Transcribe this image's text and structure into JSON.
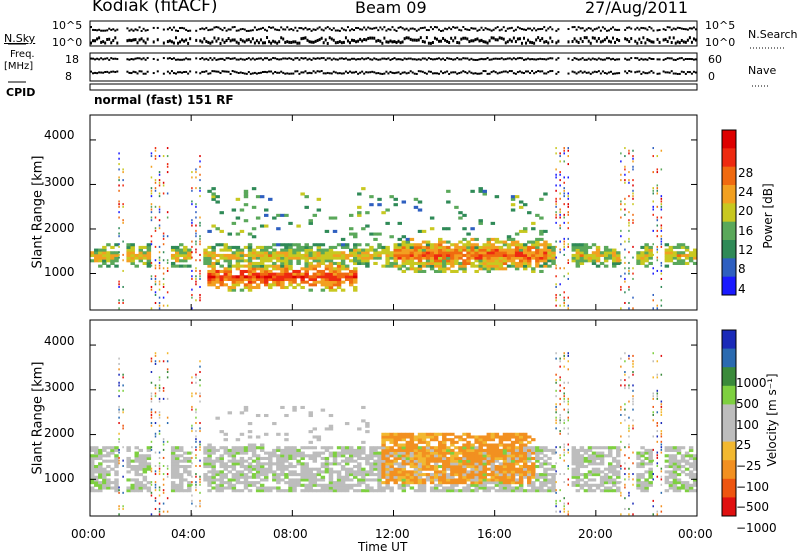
{
  "header": {
    "station": "Kodiak (fitACF)",
    "beam": "Beam 09",
    "date": "27/Aug/2011"
  },
  "status_panels": {
    "nsky_label": "N.Sky",
    "nsky_ticks": [
      "10^5",
      "10^0"
    ],
    "nsearch_label": "N.Search",
    "nsearch_ticks": [
      "10^5",
      "10^0"
    ],
    "freq_label_1": "Freq.",
    "freq_label_2": "[MHz]",
    "freq_ticks": [
      "18",
      "8"
    ],
    "nave_label": "Nave",
    "nave_ticks": [
      "60",
      "0"
    ],
    "cpid_label": "CPID",
    "cpid_text": "normal (fast) 151 RF"
  },
  "colors": {
    "power_scale": [
      "#1a1aff",
      "#2e5fc0",
      "#2f8a57",
      "#5aa85a",
      "#c8c820",
      "#f2a020",
      "#f06a10",
      "#ee2a10",
      "#dd0000"
    ],
    "velocity_scale": [
      "#e01010",
      "#ee5510",
      "#f29020",
      "#f2b830",
      "#bdbdbd",
      "#bdbdbd",
      "#7ed040",
      "#3a8a3a",
      "#2a6ab0",
      "#1a2ab8"
    ]
  },
  "chart_data": [
    {
      "type": "heatmap",
      "name": "power",
      "ylabel": "Slant Range [km]",
      "ylim": [
        180,
        4560
      ],
      "yticks": [
        "1000",
        "2000",
        "3000",
        "4000"
      ],
      "xlim": [
        0,
        24
      ],
      "colorbar": {
        "label": "Power [dB]",
        "range": [
          0,
          32
        ],
        "ticks": [
          "4",
          "8",
          "12",
          "16",
          "20",
          "24",
          "28"
        ]
      },
      "features": [
        {
          "feature": "f-layer band",
          "t0": 0.0,
          "t1": 24.0,
          "range_km": [
            1100,
            1650
          ],
          "level": 18
        },
        {
          "feature": "near-range echoes",
          "t0": 4.6,
          "t1": 10.5,
          "range_km": [
            550,
            1250
          ],
          "level": 26
        },
        {
          "feature": "dense band",
          "t0": 12.0,
          "t1": 18.0,
          "range_km": [
            1000,
            1800
          ],
          "level": 24
        }
      ],
      "data_gaps": [
        [
          1.1,
          1.4
        ],
        [
          2.3,
          3.1
        ],
        [
          4.0,
          4.4
        ],
        [
          18.3,
          19.0
        ],
        [
          20.9,
          21.6
        ],
        [
          22.2,
          22.6
        ]
      ]
    },
    {
      "type": "heatmap",
      "name": "velocity",
      "ylabel": "Slant Range [km]",
      "ylim": [
        180,
        4560
      ],
      "yticks": [
        "1000",
        "2000",
        "3000",
        "4000"
      ],
      "xlim": [
        0,
        24
      ],
      "xticks": [
        "00:00",
        "04:00",
        "08:00",
        "12:00",
        "16:00",
        "20:00",
        "00:00"
      ],
      "xlabel": "Time UT",
      "colorbar": {
        "label": "Velocity [m s⁻¹]",
        "ticks": [
          "1000",
          "500",
          "100",
          "25",
          "−25",
          "−100",
          "−500",
          "−1000"
        ]
      },
      "features": [
        {
          "feature": "ground scatter",
          "t0": 0.0,
          "t1": 24.0,
          "range_km": [
            700,
            1700
          ],
          "velocity": 0
        },
        {
          "feature": "westward flow",
          "t0": 11.5,
          "t1": 17.5,
          "range_km": [
            900,
            2000
          ],
          "velocity": -120
        }
      ]
    }
  ]
}
